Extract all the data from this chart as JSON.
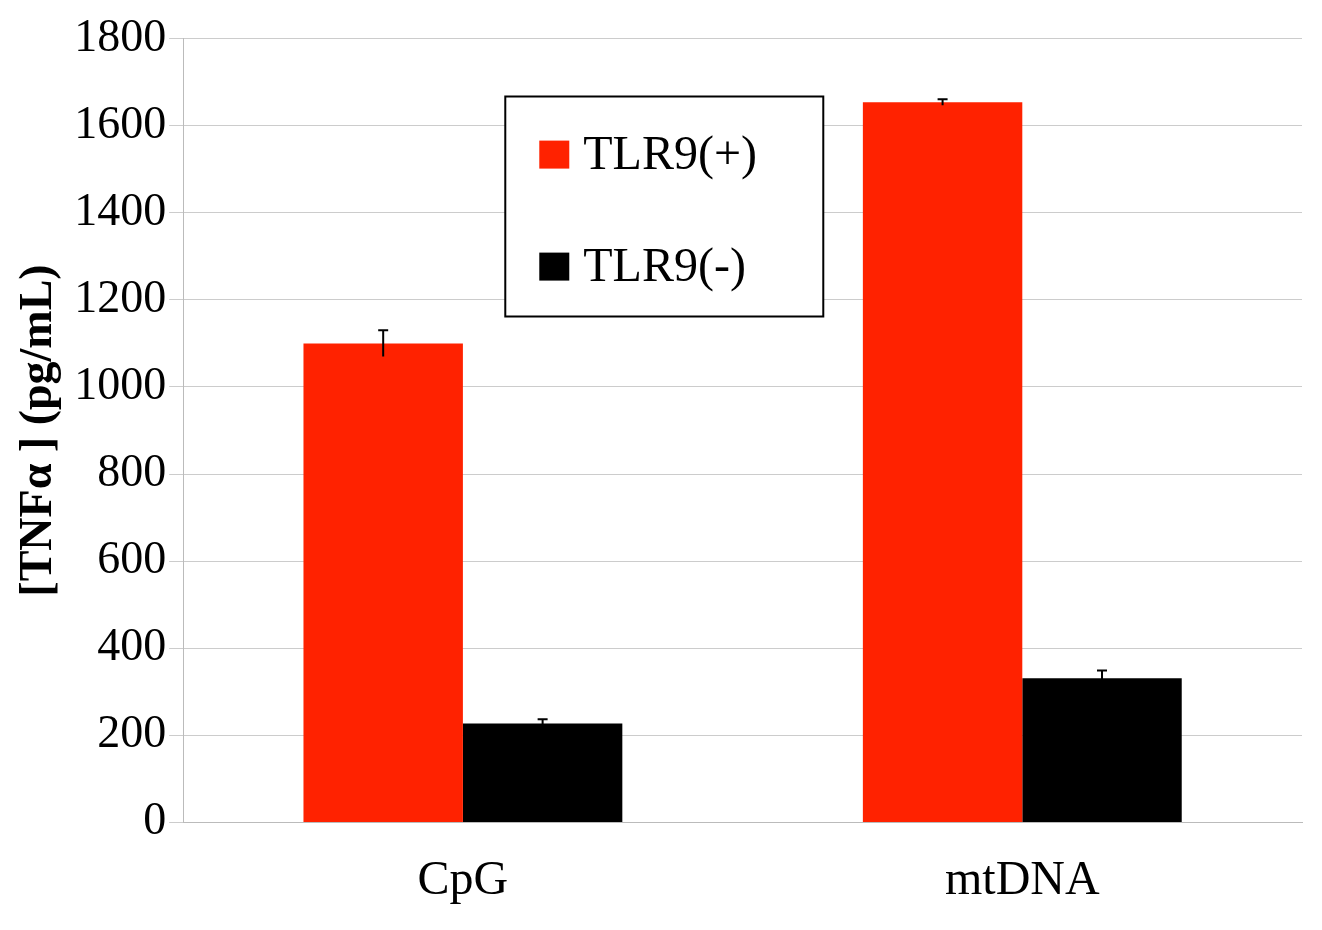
{
  "chart_data": {
    "type": "bar",
    "ylabel": "[TNFα ] (pg/mL)",
    "categories": [
      "CpG",
      "mtDNA"
    ],
    "series": [
      {
        "name": "TLR9(+)",
        "color": "#ff2200",
        "values": [
          1100,
          1654
        ],
        "errors": [
          30,
          7
        ]
      },
      {
        "name": "TLR9(-)",
        "color": "#000000",
        "values": [
          227,
          331
        ],
        "errors": [
          10,
          18
        ]
      }
    ],
    "ylim": [
      0,
      1800
    ],
    "yticks": [
      0,
      200,
      400,
      600,
      800,
      1000,
      1200,
      1400,
      1600,
      1800
    ],
    "grid": "y",
    "legend": "top"
  }
}
